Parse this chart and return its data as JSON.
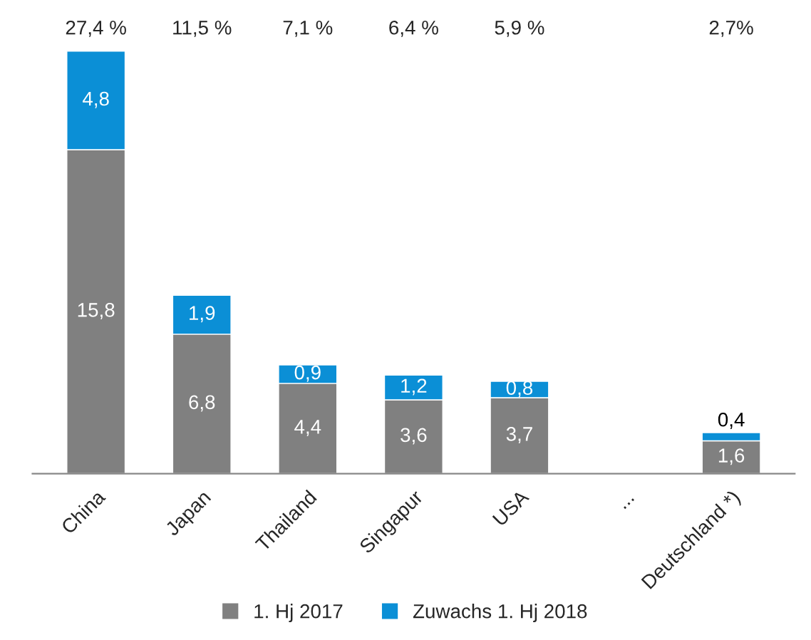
{
  "chart_data": {
    "type": "bar",
    "stacked": true,
    "legend": "bottom",
    "categories": [
      "China",
      "Japan",
      "Thailand",
      "Singapur",
      "USA",
      "...",
      "Deutschland *)"
    ],
    "series": [
      {
        "name": "1. Hj 2017",
        "color": "#808080",
        "values": [
          15.8,
          6.8,
          4.4,
          3.6,
          3.7,
          null,
          1.6
        ],
        "value_labels": [
          "15,8",
          "6,8",
          "4,4",
          "3,6",
          "3,7",
          null,
          "1,6"
        ]
      },
      {
        "name": "Zuwachs 1. Hj 2018",
        "color": "#0b8fd6",
        "values": [
          4.8,
          1.9,
          0.9,
          1.2,
          0.8,
          null,
          0.4
        ],
        "value_labels": [
          "4,8",
          "1,9",
          "0,9",
          "1,2",
          "0,8",
          null,
          "0,4"
        ]
      }
    ],
    "annotations": [
      "27,4 %",
      "11,5 %",
      "7,1 %",
      "6,4 %",
      "5,9 %",
      "2,7%"
    ]
  }
}
